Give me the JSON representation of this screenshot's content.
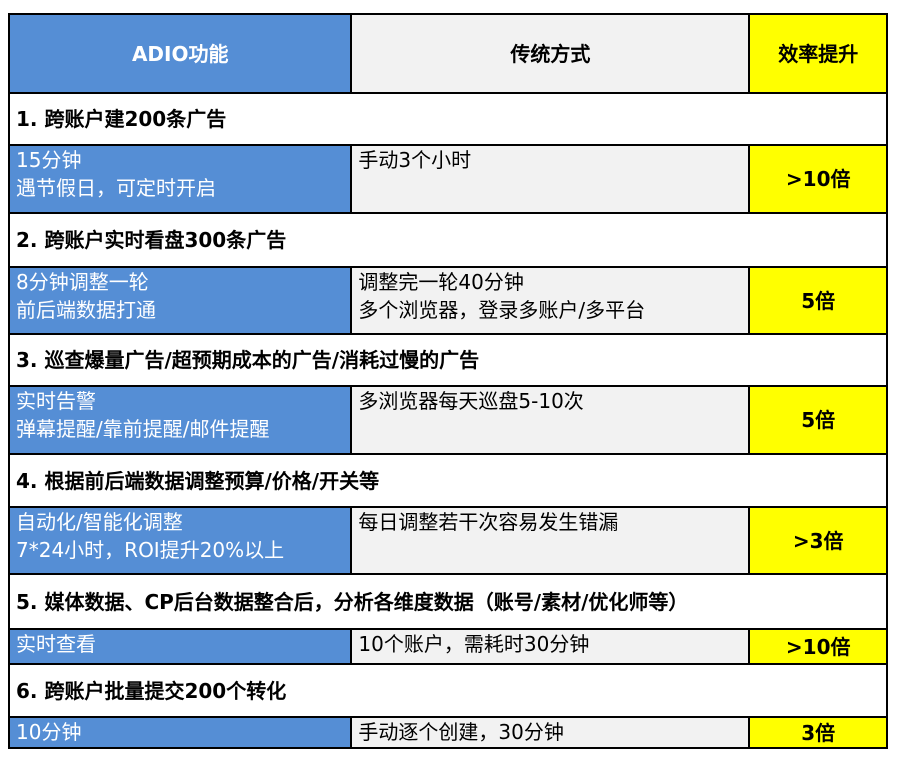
{
  "colors": {
    "feature": "#558ED5",
    "traditional": "#F2F2F2",
    "gain": "#FFFF00"
  },
  "header": {
    "feature": "ADIO功能",
    "traditional": "传统方式",
    "gain": "效率提升"
  },
  "sections": [
    {
      "title": "1. 跨账户建200条广告",
      "feature": [
        "15分钟",
        "遇节假日，可定时开启"
      ],
      "traditional": [
        "手动3个小时"
      ],
      "gain": ">10倍"
    },
    {
      "title": "2. 跨账户实时看盘300条广告",
      "feature": [
        "8分钟调整一轮",
        "前后端数据打通"
      ],
      "traditional": [
        "调整完一轮40分钟",
        "多个浏览器，登录多账户/多平台"
      ],
      "gain": "5倍"
    },
    {
      "title": "3. 巡查爆量广告/超预期成本的广告/消耗过慢的广告",
      "feature": [
        "实时告警",
        "弹幕提醒/靠前提醒/邮件提醒"
      ],
      "traditional": [
        "多浏览器每天巡盘5-10次"
      ],
      "gain": "5倍"
    },
    {
      "title": "4. 根据前后端数据调整预算/价格/开关等",
      "feature": [
        "自动化/智能化调整",
        "7*24小时，ROI提升20%以上"
      ],
      "traditional": [
        "每日调整若干次容易发生错漏"
      ],
      "gain": ">3倍"
    },
    {
      "title": "5. 媒体数据、CP后台数据整合后，分析各维度数据（账号/素材/优化师等）",
      "feature": [
        "实时查看"
      ],
      "traditional": [
        "10个账户，需耗时30分钟"
      ],
      "gain": ">10倍"
    },
    {
      "title": "6. 跨账户批量提交200个转化",
      "feature": [
        "10分钟"
      ],
      "traditional": [
        "手动逐个创建，30分钟"
      ],
      "gain": "3倍"
    }
  ]
}
